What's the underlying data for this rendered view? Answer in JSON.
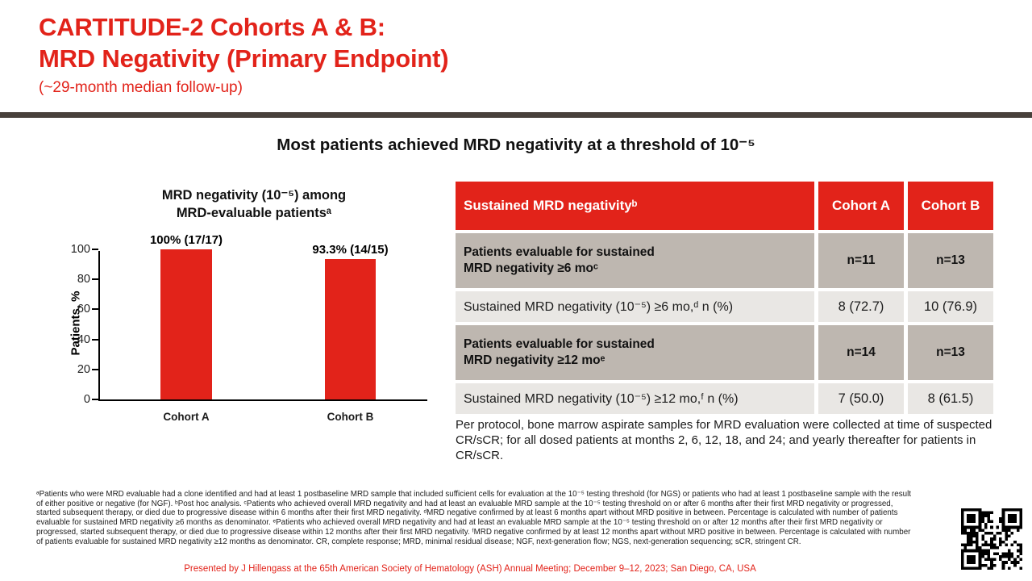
{
  "header": {
    "title_line1": "CARTITUDE-2 Cohorts A & B:",
    "title_line2": "MRD Negativity (Primary Endpoint)",
    "subtitle": "(~29-month median follow-up)"
  },
  "headline": "Most patients achieved MRD negativity at a threshold of 10⁻⁵",
  "chart_data": {
    "type": "bar",
    "title_line1": "MRD negativity (10⁻⁵) among",
    "title_line2": "MRD-evaluable patientsᵃ",
    "categories": [
      "Cohort A",
      "Cohort B"
    ],
    "values": [
      100,
      93.3
    ],
    "bar_labels": [
      "100% (17/17)",
      "93.3% (14/15)"
    ],
    "ylabel": "Patients, %",
    "xlabel": "",
    "yticks": [
      0,
      20,
      40,
      60,
      80,
      100
    ],
    "ylim": [
      0,
      100
    ],
    "bar_color": "#E2231A",
    "grid": false,
    "legend": "none"
  },
  "table": {
    "header": [
      "Sustained MRD negativityᵇ",
      "Cohort A",
      "Cohort B"
    ],
    "rows": [
      {
        "style": "subhead",
        "cells": [
          "Patients evaluable for sustained\nMRD negativity ≥6 moᶜ",
          "n=11",
          "n=13"
        ]
      },
      {
        "style": "data",
        "cells": [
          "Sustained MRD negativity (10⁻⁵) ≥6 mo,ᵈ n (%)",
          "8 (72.7)",
          "10 (76.9)"
        ]
      },
      {
        "style": "subhead",
        "cells": [
          "Patients evaluable for sustained\nMRD negativity ≥12 moᵉ",
          "n=14",
          "n=13"
        ]
      },
      {
        "style": "data",
        "cells": [
          "Sustained MRD negativity (10⁻⁵) ≥12 mo,ᶠ n (%)",
          "7 (50.0)",
          "8 (61.5)"
        ]
      }
    ],
    "note": "Per protocol, bone marrow aspirate samples for MRD evaluation were collected at time of suspected CR/sCR; for all dosed patients at months 2, 6, 12, 18, and 24; and yearly thereafter for patients in CR/sCR."
  },
  "footnotes": "ᵃPatients who were MRD evaluable had a clone identified and had at least 1 postbaseline MRD sample that included sufficient cells for evaluation at the 10⁻⁵ testing threshold (for NGS) or patients who had at least 1 postbaseline sample with the result of either positive or negative (for NGF). ᵇPost hoc analysis. ᶜPatients who achieved overall MRD negativity and had at least an evaluable MRD sample at the 10⁻⁵ testing threshold on or after 6 months after their first MRD negativity or progressed, started subsequent therapy, or died due to progressive disease within 6 months after their first MRD negativity. ᵈMRD negative confirmed by at least 6 months apart without MRD positive in between. Percentage is calculated with number of patients evaluable for sustained MRD negativity ≥6 months as denominator. ᵉPatients who achieved overall MRD negativity and had at least an evaluable MRD sample at the 10⁻⁵ testing threshold on or after 12 months after their first MRD negativity or progressed, started subsequent therapy, or died due to progressive disease within 12 months after their first MRD negativity. ᶠMRD negative confirmed by at least 12 months apart without MRD positive in between. Percentage is calculated with number of patients evaluable for sustained MRD negativity ≥12 months as denominator. CR, complete response; MRD, minimal residual disease; NGF, next-generation flow; NGS, next-generation sequencing; sCR, stringent CR.",
  "footer": "Presented by J Hillengass at the 65th American Society of Hematology (ASH) Annual Meeting; December 9–12, 2023; San Diego, CA, USA",
  "colors": {
    "accent_red": "#E2231A",
    "rule_brown": "#48413B",
    "row_taupe": "#BEB7B0",
    "row_light": "#E9E7E4"
  }
}
